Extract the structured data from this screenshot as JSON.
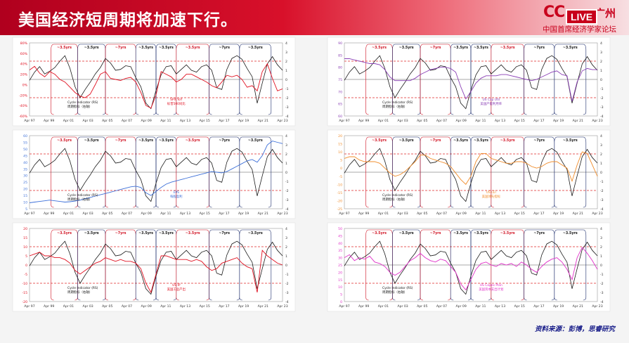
{
  "header": {
    "title": "美国经济短周期将加速下行。",
    "logo_text": "CC",
    "logo_city": "广州",
    "live_label": "LIVE",
    "logo_subtitle": "中国首席经济学家论坛"
  },
  "source": {
    "label": "资料来源：",
    "text": "彭博，思睿研究"
  },
  "colors": {
    "black": "#1a1a1a",
    "red": "#e01020",
    "blue": "#3c6fd8",
    "purple": "#8a3fb5",
    "orange": "#f08c2a",
    "magenta": "#e030c8",
    "dashed": "#e02a2a"
  },
  "chart_data": [
    {
      "type": "line",
      "panel": "left-1",
      "x_ticks": [
        "Apr 97",
        "Apr 99",
        "Apr 01",
        "Apr 03",
        "Apr 05",
        "Apr 07",
        "Apr 09",
        "Apr 11",
        "Apr 13",
        "Apr 15",
        "Apr 17",
        "Apr 19",
        "Apr 21",
        "Apr 23"
      ],
      "left_ticks": [
        "80%",
        "60%",
        "40%",
        "20%",
        "0%",
        "-20%",
        "-40%",
        "-60%"
      ],
      "left_color": "red",
      "ylim": [
        -60,
        80
      ],
      "y2lim": [
        -4,
        4
      ],
      "right_ticks": [
        "4",
        "3",
        "2",
        "1",
        "0",
        "-1",
        "-2",
        "-3",
        "-4"
      ],
      "period_labels": [
        "~3.5yrs",
        "~3.5yrs",
        "~7yrs",
        "~3.5yrs",
        "~3.5yrs",
        "~3.5yrs",
        "~7yrs",
        "~3.5yrs"
      ],
      "series": [
        {
          "name": "Cycle Indicator (RS)",
          "name_cn": "周期指标（右轴）",
          "color": "black",
          "axis": "right",
          "values": [
            -0.1,
            0.8,
            1.4,
            0.6,
            0.9,
            1.3,
            2.0,
            2.6,
            1.2,
            -0.8,
            -2.0,
            -1.1,
            -0.3,
            0.6,
            1.3,
            2.3,
            1.8,
            1.0,
            1.1,
            1.5,
            1.4,
            0.2,
            -0.8,
            -2.6,
            -3.2,
            -1.2,
            0.5,
            1.4,
            1.5,
            0.6,
            1.1,
            1.6,
            1.0,
            0.8,
            1.4,
            1.6,
            1.0,
            -0.9,
            -1.1,
            1.1,
            2.3,
            2.6,
            2.2,
            1.2,
            0.3,
            -2.6,
            -0.4,
            1.7,
            2.5,
            1.6,
            1.0
          ]
        },
        {
          "name": "SPX YoY",
          "name_cn": "标普500同比",
          "color": "red",
          "axis": "left",
          "values": [
            28,
            35,
            22,
            15,
            25,
            20,
            10,
            5,
            -5,
            -15,
            -22,
            -25,
            -18,
            0,
            20,
            25,
            12,
            10,
            8,
            12,
            14,
            5,
            -15,
            -40,
            -45,
            -20,
            25,
            20,
            15,
            5,
            10,
            20,
            20,
            15,
            10,
            5,
            -2,
            -6,
            5,
            18,
            15,
            18,
            10,
            -5,
            -2,
            -12,
            25,
            40,
            12,
            -12,
            -8
          ]
        }
      ]
    },
    {
      "type": "line",
      "panel": "left-2",
      "x_ticks": [
        "Apr 97",
        "Apr 99",
        "Apr 01",
        "Apr 03",
        "Apr 05",
        "Apr 07",
        "Apr 09",
        "Apr 11",
        "Apr 13",
        "Apr 15",
        "Apr 17",
        "Apr 19",
        "Apr 21",
        "Apr 23"
      ],
      "left_ticks": [
        "60",
        "55",
        "50",
        "45",
        "40",
        "35",
        "30",
        "25",
        "20",
        "15",
        "10",
        "5"
      ],
      "left_color": "blue",
      "ylim": [
        5,
        60
      ],
      "y2lim": [
        -4,
        4
      ],
      "right_ticks": [
        "4",
        "3",
        "2",
        "1",
        "0",
        "-1",
        "-2",
        "-3",
        "-4"
      ],
      "period_labels": [
        "~3.5yrs",
        "~3.5yrs",
        "~7yrs",
        "~3.5yrs",
        "~3.5yrs",
        "~3.5yrs",
        "~7yrs",
        "~3.5yrs"
      ],
      "series": [
        {
          "name": "Cycle Indicator (RS)",
          "name_cn": "周期指标（右轴）",
          "color": "black",
          "axis": "right",
          "values": [
            -0.1,
            0.8,
            1.4,
            0.6,
            0.9,
            1.3,
            2.0,
            2.6,
            1.2,
            -0.8,
            -2.0,
            -1.1,
            -0.3,
            0.6,
            1.3,
            2.3,
            1.8,
            1.0,
            1.1,
            1.5,
            1.4,
            0.2,
            -0.8,
            -2.6,
            -3.2,
            -1.2,
            0.5,
            1.4,
            1.5,
            0.6,
            1.1,
            1.6,
            1.0,
            0.8,
            1.4,
            1.6,
            1.0,
            -0.9,
            -1.1,
            1.1,
            2.3,
            2.6,
            2.2,
            1.2,
            0.3,
            -2.6,
            -0.4,
            1.7,
            2.5,
            1.6,
            1.0
          ]
        },
        {
          "name": "EPS",
          "name_cn": "每股盈利",
          "color": "blue",
          "axis": "left",
          "values": [
            9.5,
            10,
            10.5,
            11,
            11.5,
            11,
            10.5,
            10,
            10.3,
            10.8,
            11.5,
            12.5,
            13.5,
            14.5,
            15.5,
            16.5,
            17.5,
            18.5,
            19.5,
            20.5,
            21.5,
            22,
            21,
            17,
            15,
            18,
            21,
            23.5,
            25,
            26,
            27,
            28,
            29,
            30,
            31,
            32,
            33,
            32.5,
            32,
            33,
            35,
            37,
            39,
            41,
            42,
            40,
            45,
            53,
            56,
            55,
            54
          ]
        }
      ]
    },
    {
      "type": "line",
      "panel": "left-3",
      "x_ticks": [
        "Apr 97",
        "Apr 99",
        "Apr 01",
        "Apr 03",
        "Apr 05",
        "Apr 07",
        "Apr 09",
        "Apr 11",
        "Apr 13",
        "Apr 15",
        "Apr 17",
        "Apr 19",
        "Apr 21",
        "Apr 23"
      ],
      "left_ticks": [
        "20",
        "15",
        "10",
        "5",
        "0",
        "-5",
        "-10",
        "-15",
        "-20"
      ],
      "left_color": "red",
      "ylim": [
        -20,
        20
      ],
      "y2lim": [
        -4,
        4
      ],
      "right_ticks": [
        "4",
        "3",
        "2",
        "1",
        "0",
        "-1",
        "-2",
        "-3",
        "-4"
      ],
      "period_labels": [
        "~3.5yrs",
        "~3.5yrs",
        "~7yrs",
        "~3.5yrs",
        "~3.5yrs",
        "~3.5yrs",
        "~7yrs",
        "~3.5yrs"
      ],
      "series": [
        {
          "name": "Cycle Indicator (RS)",
          "name_cn": "周期指标（右轴）",
          "color": "black",
          "axis": "right",
          "values": [
            -0.1,
            0.8,
            1.4,
            0.6,
            0.9,
            1.3,
            2.0,
            2.6,
            1.2,
            -0.8,
            -2.0,
            -1.1,
            -0.3,
            0.6,
            1.3,
            2.3,
            1.8,
            1.0,
            1.1,
            1.5,
            1.4,
            0.2,
            -0.8,
            -2.6,
            -3.2,
            -1.2,
            0.5,
            1.4,
            1.5,
            0.6,
            1.1,
            1.6,
            1.0,
            0.8,
            1.4,
            1.6,
            1.0,
            -0.9,
            -1.1,
            1.1,
            2.3,
            2.6,
            2.2,
            1.2,
            0.3,
            -2.6,
            -0.4,
            1.7,
            2.5,
            1.6,
            1.0
          ]
        },
        {
          "name": "US IP",
          "name_cn": "美国工业产出",
          "color": "red",
          "axis": "left",
          "values": [
            5,
            6,
            7,
            5,
            5,
            4,
            4,
            3,
            1,
            -3,
            -5,
            -3,
            -1,
            1,
            2,
            4,
            3,
            2,
            3,
            2,
            2,
            1,
            -2,
            -10,
            -15,
            -5,
            5,
            5,
            4,
            3,
            3,
            3,
            2,
            3,
            2,
            -1,
            -3,
            -2,
            1,
            2,
            3,
            4,
            1,
            -1,
            -2,
            -15,
            8,
            5,
            3,
            1,
            0
          ]
        }
      ]
    },
    {
      "type": "line",
      "panel": "right-1",
      "x_ticks": [
        "Apr 97",
        "Apr 99",
        "Apr 01",
        "Apr 03",
        "Apr 05",
        "Apr 07",
        "Apr 09",
        "Apr 11",
        "Apr 13",
        "Apr 15",
        "Apr 17",
        "Apr 19",
        "Apr 21",
        "Apr 23"
      ],
      "left_ticks": [
        "90",
        "85",
        "80",
        "75",
        "70",
        "65",
        "60"
      ],
      "left_color": "purple",
      "ylim": [
        60,
        90
      ],
      "y2lim": [
        -4,
        4
      ],
      "right_ticks": [
        "4",
        "3",
        "2",
        "1",
        "0",
        "-1",
        "-2",
        "-3",
        "-4"
      ],
      "period_labels": [
        "~3.5yrs",
        "~3.5yrs",
        "~7yrs",
        "~3.5yrs",
        "~3.5yrs",
        "~3.5yrs",
        "~7yrs",
        "~3.5yrs"
      ],
      "series": [
        {
          "name": "Cycle Indicator (RS)",
          "name_cn": "周期指标（右轴）",
          "color": "black",
          "axis": "right",
          "values": [
            -0.1,
            0.8,
            1.4,
            0.6,
            0.9,
            1.3,
            2.0,
            2.6,
            1.2,
            -0.8,
            -2.0,
            -1.1,
            -0.3,
            0.6,
            1.3,
            2.3,
            1.8,
            1.0,
            1.1,
            1.5,
            1.4,
            0.2,
            -0.8,
            -2.6,
            -3.2,
            -1.2,
            0.5,
            1.4,
            1.5,
            0.6,
            1.1,
            1.6,
            1.0,
            0.8,
            1.4,
            1.6,
            1.0,
            -0.9,
            -1.1,
            1.1,
            2.3,
            2.6,
            2.2,
            1.2,
            0.3,
            -2.6,
            -0.4,
            1.7,
            2.5,
            1.6,
            1.0
          ]
        },
        {
          "name": "US Cap Util",
          "name_cn": "美国产能利用率",
          "color": "purple",
          "axis": "left",
          "values": [
            83.5,
            83.5,
            83,
            82.5,
            82,
            81.5,
            81.5,
            81,
            79,
            76,
            74.5,
            74.5,
            74.5,
            74.5,
            75.5,
            77,
            78,
            79,
            79.5,
            80,
            80,
            79.5,
            78,
            72,
            67,
            70,
            73.5,
            75.5,
            76.5,
            76.5,
            76.5,
            77,
            77,
            76.5,
            76,
            75.5,
            75,
            74.5,
            75,
            76,
            77,
            78,
            78.5,
            77,
            76.5,
            66,
            74,
            78.5,
            79.5,
            79,
            79
          ]
        }
      ]
    },
    {
      "type": "line",
      "panel": "right-2",
      "x_ticks": [
        "Apr 97",
        "Apr 99",
        "Apr 01",
        "Apr 03",
        "Apr 05",
        "Apr 07",
        "Apr 09",
        "Apr 11",
        "Apr 13",
        "Apr 15",
        "Apr 17",
        "Apr 19",
        "Apr 21",
        "Apr 23"
      ],
      "left_ticks": [
        "20",
        "15",
        "10",
        "5",
        "0",
        "-5",
        "-10",
        "-15",
        "-20",
        "-25"
      ],
      "left_color": "orange",
      "ylim": [
        -25,
        20
      ],
      "y2lim": [
        -4,
        4
      ],
      "right_ticks": [
        "4",
        "3",
        "2",
        "1",
        "0",
        "-1",
        "-2",
        "-3",
        "-4"
      ],
      "period_labels": [
        "~3.5yrs",
        "~3.5yrs",
        "~7yrs",
        "~3.5yrs",
        "~3.5yrs",
        "~3.5yrs",
        "~7yrs",
        "~3.5yrs"
      ],
      "series": [
        {
          "name": "Cycle Indicator (RS)",
          "name_cn": "周期指标（右轴）",
          "color": "black",
          "axis": "right",
          "values": [
            -0.1,
            0.8,
            1.4,
            0.6,
            0.9,
            1.3,
            2.0,
            2.6,
            1.2,
            -0.8,
            -2.0,
            -1.1,
            -0.3,
            0.6,
            1.3,
            2.3,
            1.8,
            1.0,
            1.1,
            1.5,
            1.4,
            0.2,
            -0.8,
            -2.6,
            -3.2,
            -1.2,
            0.5,
            1.4,
            1.5,
            0.6,
            1.1,
            1.6,
            1.0,
            0.8,
            1.4,
            1.6,
            1.0,
            -0.9,
            -1.1,
            1.1,
            2.3,
            2.6,
            2.2,
            1.2,
            0.3,
            -2.6,
            -0.4,
            1.7,
            2.5,
            1.6,
            1.0
          ]
        },
        {
          "name": "US LEI",
          "name_cn": "美国领先指标",
          "color": "orange",
          "axis": "left",
          "values": [
            6,
            7,
            7,
            5,
            4,
            4,
            4,
            3,
            0,
            -3,
            -5,
            -4,
            -2,
            1,
            4,
            8,
            8,
            6,
            5,
            4,
            3,
            1,
            -3,
            -7,
            -10,
            -5,
            4,
            9,
            9,
            6,
            5,
            4,
            3,
            3,
            4,
            4,
            3,
            1,
            0,
            1,
            3,
            4,
            4,
            2,
            0,
            -8,
            2,
            10,
            9,
            2,
            -5
          ]
        }
      ]
    },
    {
      "type": "line",
      "panel": "right-3",
      "x_ticks": [
        "Apr 97",
        "Apr 99",
        "Apr 01",
        "Apr 03",
        "Apr 05",
        "Apr 07",
        "Apr 09",
        "Apr 11",
        "Apr 13",
        "Apr 15",
        "Apr 17",
        "Apr 19",
        "Apr 21",
        "Apr 23"
      ],
      "left_ticks": [
        "50",
        "45",
        "40",
        "35",
        "30",
        "25",
        "20",
        "15",
        "10",
        "5",
        "0"
      ],
      "left_color": "magenta",
      "ylim": [
        0,
        50
      ],
      "y2lim": [
        -4,
        4
      ],
      "right_ticks": [
        "4",
        "3",
        "2",
        "1",
        "0",
        "-1",
        "-2",
        "-3",
        "-4"
      ],
      "period_labels": [
        "~3.5yrs",
        "~3.5yrs",
        "~7yrs",
        "~3.5yrs",
        "~3.5yrs",
        "~3.5yrs",
        "~7yrs",
        "~3.5yrs"
      ],
      "series": [
        {
          "name": "Cycle Indicator (RS)",
          "name_cn": "周期指标（右轴）",
          "color": "black",
          "axis": "right",
          "values": [
            -0.1,
            0.8,
            1.4,
            0.6,
            0.9,
            1.3,
            2.0,
            2.6,
            1.2,
            -0.8,
            -2.0,
            -1.1,
            -0.3,
            0.6,
            1.3,
            2.3,
            1.8,
            1.0,
            1.1,
            1.5,
            1.4,
            0.2,
            -0.8,
            -2.6,
            -3.2,
            -1.2,
            0.5,
            1.4,
            1.5,
            0.6,
            1.1,
            1.6,
            1.0,
            0.8,
            1.4,
            1.6,
            1.0,
            -0.9,
            -1.1,
            1.1,
            2.3,
            2.6,
            2.2,
            1.2,
            0.3,
            -2.6,
            -0.4,
            1.7,
            2.5,
            1.6,
            1.0
          ]
        },
        {
          "name": "US Capex Plan",
          "name_cn": "美国资本支出计划",
          "color": "magenta",
          "axis": "left",
          "values": [
            30,
            32,
            28,
            30,
            29,
            31,
            27,
            26,
            24,
            20,
            18,
            20,
            24,
            28,
            30,
            33,
            30,
            28,
            27,
            29,
            28,
            24,
            20,
            12,
            8,
            15,
            22,
            26,
            27,
            25,
            24,
            26,
            25,
            26,
            24,
            27,
            25,
            22,
            20,
            24,
            27,
            29,
            30,
            27,
            22,
            15,
            30,
            37,
            33,
            28,
            22
          ]
        }
      ]
    }
  ]
}
